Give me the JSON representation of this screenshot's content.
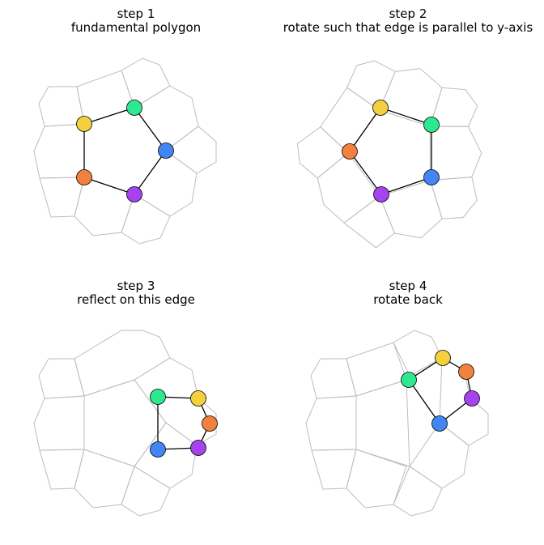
{
  "panels": [
    {
      "step": "step 1",
      "caption": "fundamental polygon",
      "vertex_colors": [
        "#f4d03f",
        "#2ee88f",
        "#4285f4",
        "#a742f0",
        "#f2803f"
      ]
    },
    {
      "step": "step 2",
      "caption": "rotate such that edge is parallel to y-axis",
      "vertex_colors": [
        "#f4d03f",
        "#2ee88f",
        "#4285f4",
        "#a742f0",
        "#f2803f"
      ]
    },
    {
      "step": "step 3",
      "caption": "reflect on this edge",
      "vertex_colors": [
        "#2ee88f",
        "#f4d03f",
        "#f2803f",
        "#a742f0",
        "#4285f4"
      ]
    },
    {
      "step": "step 4",
      "caption": "rotate back",
      "vertex_colors": [
        "#2ee88f",
        "#f4d03f",
        "#f2803f",
        "#a742f0",
        "#4285f4"
      ]
    }
  ],
  "colors": {
    "tiling_edge": "#bdbdbd",
    "polygon_edge": "#000000",
    "vertex_outline": "#000000"
  }
}
